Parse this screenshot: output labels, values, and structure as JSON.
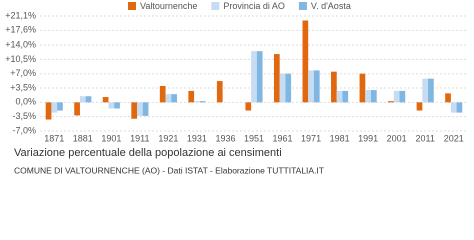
{
  "chart_data": {
    "type": "bar",
    "title": "Variazione percentuale della popolazione ai censimenti",
    "subtitle": "COMUNE DI VALTOURNENCHE (AO) - Dati ISTAT - Elaborazione TUTTITALIA.IT",
    "categories": [
      "1871",
      "1881",
      "1901",
      "1911",
      "1921",
      "1931",
      "1936",
      "1951",
      "1961",
      "1971",
      "1981",
      "1991",
      "2001",
      "2011",
      "2021"
    ],
    "series": [
      {
        "name": "Valtournenche",
        "color": "#e0690f",
        "values": [
          -4.2,
          -3.2,
          1.3,
          -4.0,
          4.0,
          2.8,
          5.2,
          -2.0,
          11.8,
          20.0,
          7.5,
          7.0,
          0.3,
          -2.0,
          2.2
        ]
      },
      {
        "name": "Provincia di AO",
        "color": "#c6dcf2",
        "values": [
          -2.5,
          1.5,
          -1.5,
          -3.3,
          2.0,
          0.3,
          0,
          12.5,
          7.0,
          7.8,
          2.8,
          3.0,
          2.8,
          5.8,
          -2.5
        ]
      },
      {
        "name": "V. d'Aosta",
        "color": "#7fb6e2",
        "values": [
          -2.0,
          1.5,
          -1.5,
          -3.3,
          2.0,
          0.3,
          0,
          12.5,
          7.0,
          7.8,
          2.8,
          3.0,
          2.8,
          5.8,
          -2.5
        ]
      }
    ],
    "ylim": [
      -7.0,
      21.1
    ],
    "yticks": [
      {
        "value": -7.0,
        "label": "-7,0%"
      },
      {
        "value": -3.5,
        "label": "-3,5%"
      },
      {
        "value": 0,
        "label": "0,0%"
      },
      {
        "value": 3.5,
        "label": "+3,5%"
      },
      {
        "value": 7.0,
        "label": "+7,0%"
      },
      {
        "value": 10.5,
        "label": "+10,5%"
      },
      {
        "value": 14.0,
        "label": "+14,0%"
      },
      {
        "value": 17.6,
        "label": "+17,6%"
      },
      {
        "value": 21.1,
        "label": "+21,1%"
      }
    ],
    "grid": true
  }
}
